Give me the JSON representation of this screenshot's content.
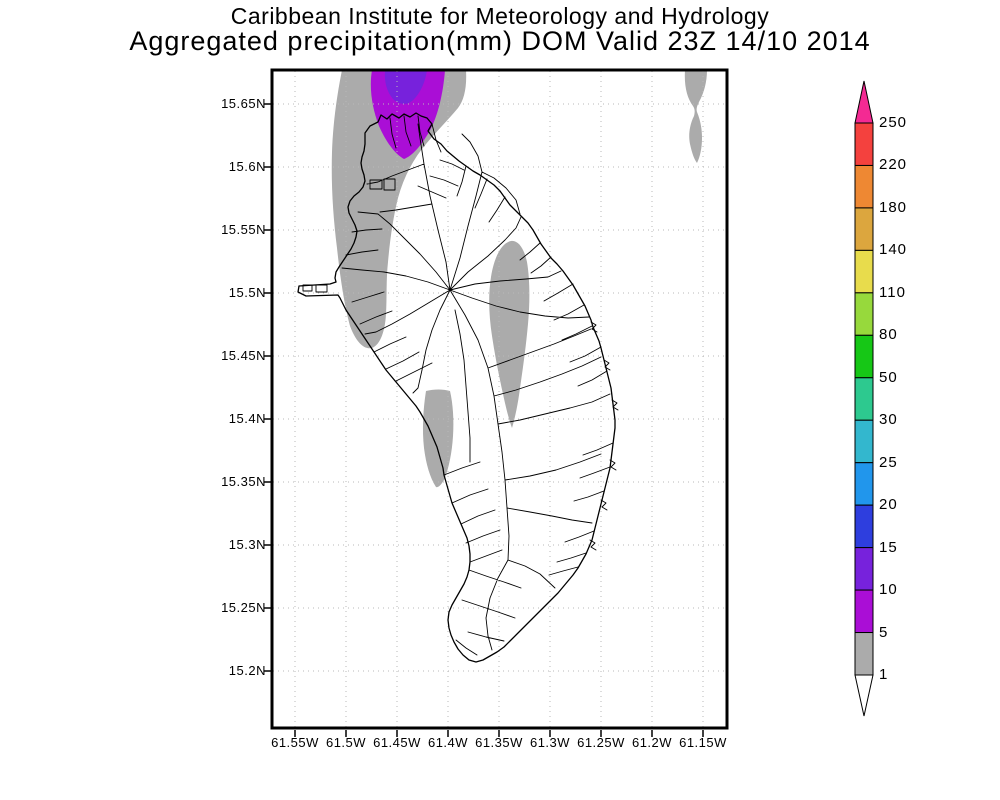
{
  "title": {
    "line1": "Caribbean Institute for Meteorology and Hydrology",
    "line2": "Aggregated precipitation(mm) DOM Valid 23Z 14/10 2014"
  },
  "axes": {
    "lat_labels": [
      "15.65N",
      "15.6N",
      "15.55N",
      "15.5N",
      "15.45N",
      "15.4N",
      "15.35N",
      "15.3N",
      "15.25N",
      "15.2N"
    ],
    "lon_labels": [
      "61.55W",
      "61.5W",
      "61.45W",
      "61.4W",
      "61.35W",
      "61.3W",
      "61.25W",
      "61.2W",
      "61.15W"
    ]
  },
  "colorbar": {
    "tick_labels": [
      "250",
      "220",
      "180",
      "140",
      "110",
      "80",
      "50",
      "30",
      "25",
      "20",
      "15",
      "10",
      "5",
      "1"
    ],
    "segments_top_to_bottom": [
      {
        "range": "220-250",
        "color": "#F4413E"
      },
      {
        "range": "180-220",
        "color": "#EE8833"
      },
      {
        "range": "140-180",
        "color": "#DCA63E"
      },
      {
        "range": "110-140",
        "color": "#E8DC4C"
      },
      {
        "range": "80-110",
        "color": "#97D93C"
      },
      {
        "range": "50-80",
        "color": "#16C716"
      },
      {
        "range": "30-50",
        "color": "#2DC98F"
      },
      {
        "range": "25-30",
        "color": "#33B7CE"
      },
      {
        "range": "20-25",
        "color": "#2196EC"
      },
      {
        "range": "15-20",
        "color": "#2E3EDE"
      },
      {
        "range": "10-15",
        "color": "#7722DC"
      },
      {
        "range": "5-10",
        "color": "#AA0ED6"
      },
      {
        "range": "1-5",
        "color": "#ABABAB"
      }
    ],
    "over_color": "#F42A93",
    "under_color": "#FFFFFF"
  },
  "shading": {
    "units": "mm",
    "regions": [
      {
        "name": "northwest-offshore-band",
        "level": "1-5",
        "color": "#ABABAB"
      },
      {
        "name": "north-plume-outer",
        "level": "5-10",
        "color": "#AA0ED6"
      },
      {
        "name": "north-plume-core",
        "level": "10-15",
        "color": "#7722DC"
      },
      {
        "name": "northeast-offshore-blob",
        "level": "1-5",
        "color": "#ABABAB"
      },
      {
        "name": "central-interior-blob",
        "level": "1-5",
        "color": "#ABABAB"
      },
      {
        "name": "west-coast-patch",
        "level": "1-5",
        "color": "#ABABAB"
      }
    ]
  },
  "colors": {
    "axis": "#000000",
    "grid": "#B9B9B9",
    "background": "#FFFFFF"
  }
}
